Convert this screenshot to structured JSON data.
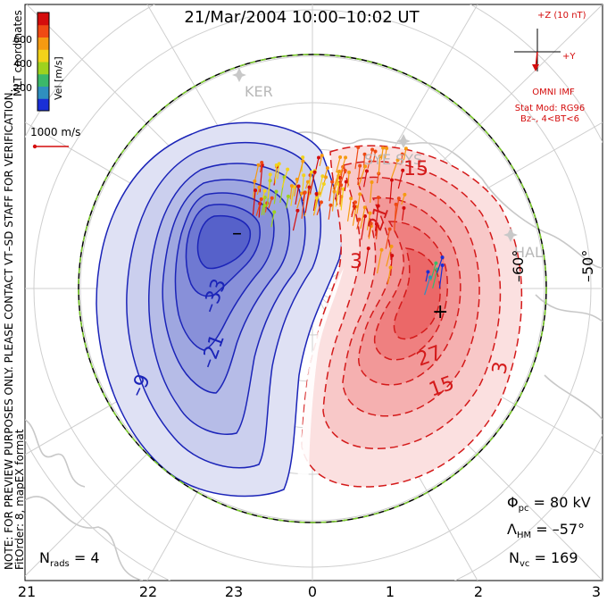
{
  "title": "21/Mar/2004  10:00–10:02  UT",
  "coordinates_label": "MLT coordinates",
  "velocity_scale": {
    "label": "Vel [m/s]",
    "ticks": [
      "200",
      "400",
      "600"
    ],
    "colors": [
      "#1a2fd6",
      "#2f8fbf",
      "#3bb86a",
      "#9ed21e",
      "#f2d21a",
      "#f59a12",
      "#ef4a14",
      "#d40c0c"
    ]
  },
  "reference_vector": {
    "label": "1000 m/s",
    "color": "#d40c0c"
  },
  "imf": {
    "z_label": "+Z (10 nT)",
    "y_label": "+Y",
    "source": "OMNI IMF",
    "model": "Stat Mod: RG96",
    "condition": "Bz–, 4<BT<6",
    "color": "#d40c0c"
  },
  "stations": [
    {
      "name": "KER"
    },
    {
      "name": "SYE SYS"
    },
    {
      "name": "HAL"
    }
  ],
  "latitude_labels": [
    "–60°",
    "–50°"
  ],
  "mlt_ticks": [
    "21",
    "22",
    "23",
    "0",
    "1",
    "2",
    "3"
  ],
  "contours": {
    "negative_labels": [
      "–9",
      "–21",
      "–33"
    ],
    "positive_labels": [
      "3",
      "15",
      "27",
      "3",
      "15",
      "21"
    ],
    "negative_color": "#1b24b8",
    "positive_color": "#d41a1a",
    "min_marker": "–",
    "max_marker": "+"
  },
  "stats": {
    "phi_pc": "80 kV",
    "lambda_hm": "–57°",
    "n_vc": "169",
    "n_rads": "4"
  },
  "side_note_1": "NOTE: FOR PREVIEW PURPOSES ONLY. PLEASE CONTACT VT–SD STAFF FOR VERIFICATION.",
  "side_note_2": "FitOrder: 8,  mapEX format"
}
